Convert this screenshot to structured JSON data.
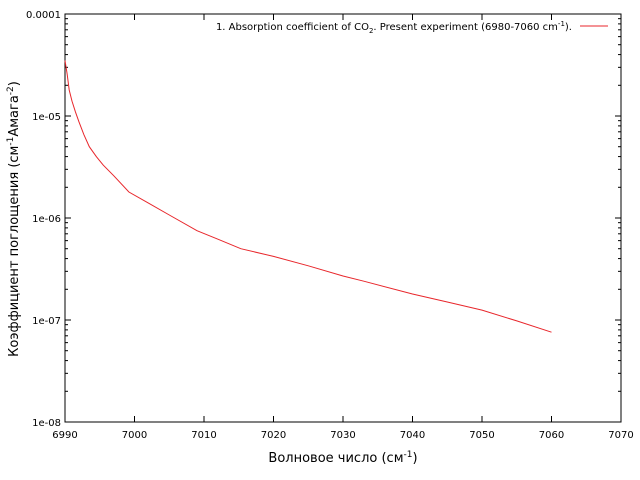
{
  "chart_data": {
    "type": "line",
    "title": "",
    "xlabel": "Волновое число (см",
    "xlabel_sup": "-1",
    "xlabel_tail": ")",
    "ylabel": "Коэффициент поглощения (см",
    "ylabel_sup1": "-1",
    "ylabel_mid": "Амага",
    "ylabel_sup2": "-2",
    "ylabel_tail": ")",
    "xlim": [
      6990,
      7070
    ],
    "ylim": [
      1e-08,
      0.0001
    ],
    "yscale": "log",
    "grid": false,
    "legend_position": "top-right",
    "x_ticks": [
      6990,
      7000,
      7010,
      7020,
      7030,
      7040,
      7050,
      7060,
      7070
    ],
    "y_ticks": [
      {
        "value": 0.0001,
        "label": "0.0001"
      },
      {
        "value": 1e-05,
        "label": "1e-05"
      },
      {
        "value": 1e-06,
        "label": "1e-06"
      },
      {
        "value": 1e-07,
        "label": "1e-07"
      },
      {
        "value": 1e-08,
        "label": "1e-08"
      }
    ],
    "series": [
      {
        "legend_text": "1. Absorption coefficient of CO",
        "legend_sub": "2",
        "legend_mid": ". Present experiment (6980-7060 cm",
        "legend_sup": "-1",
        "legend_tail": ").",
        "color": "#e8262b",
        "x": [
          6990.0,
          6990.3,
          6990.6,
          6991.0,
          6991.5,
          6992.0,
          6992.7,
          6993.5,
          6994.5,
          6995.5,
          6997.0,
          6999.2,
          7002.0,
          7005.0,
          7009.0,
          7012.0,
          7015.3,
          7020.0,
          7025.0,
          7030.0,
          7033.0,
          7040.0,
          7045.0,
          7050.0,
          7055.0,
          7060.0
        ],
        "y": [
          3.5e-05,
          2.6e-05,
          1.8e-05,
          1.4e-05,
          1.1e-05,
          8.8e-06,
          6.6e-06,
          5e-06,
          4e-06,
          3.3e-06,
          2.6e-06,
          1.8e-06,
          1.4e-06,
          1.07e-06,
          7.5e-07,
          6.2e-07,
          5e-07,
          4.2e-07,
          3.4e-07,
          2.7e-07,
          2.4e-07,
          1.8e-07,
          1.5e-07,
          1.25e-07,
          9.8e-08,
          7.6e-08
        ]
      }
    ]
  }
}
